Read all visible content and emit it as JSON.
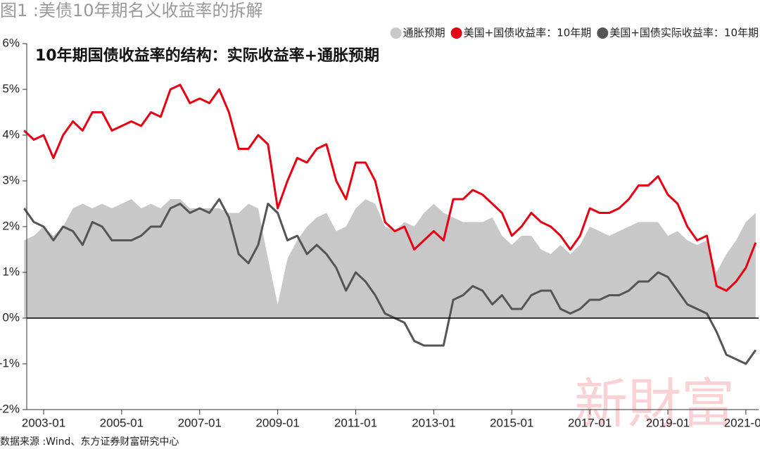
{
  "chart_data": {
    "type": "line",
    "title": "图1 :美债10年期名义收益率的拆解",
    "subtitle": "10年期国债收益率的结构：实际收益率+通胀预期",
    "source": "数据来源 :Wind、东方证券财富研究中心",
    "watermark": "新財富",
    "x": [
      "2002-07",
      "2002-10",
      "2003-01",
      "2003-04",
      "2003-07",
      "2003-10",
      "2004-01",
      "2004-04",
      "2004-07",
      "2004-10",
      "2005-01",
      "2005-04",
      "2005-07",
      "2005-10",
      "2006-01",
      "2006-04",
      "2006-07",
      "2006-10",
      "2007-01",
      "2007-04",
      "2007-07",
      "2007-10",
      "2008-01",
      "2008-04",
      "2008-07",
      "2008-10",
      "2009-01",
      "2009-04",
      "2009-07",
      "2009-10",
      "2010-01",
      "2010-04",
      "2010-07",
      "2010-10",
      "2011-01",
      "2011-04",
      "2011-07",
      "2011-10",
      "2012-01",
      "2012-04",
      "2012-07",
      "2012-10",
      "2013-01",
      "2013-04",
      "2013-07",
      "2013-10",
      "2014-01",
      "2014-04",
      "2014-07",
      "2014-10",
      "2015-01",
      "2015-04",
      "2015-07",
      "2015-10",
      "2016-01",
      "2016-04",
      "2016-07",
      "2016-10",
      "2017-01",
      "2017-04",
      "2017-07",
      "2017-10",
      "2018-01",
      "2018-04",
      "2018-07",
      "2018-10",
      "2019-01",
      "2019-04",
      "2019-07",
      "2019-10",
      "2020-01",
      "2020-04",
      "2020-07",
      "2020-10",
      "2021-01",
      "2021-04"
    ],
    "xticks": [
      "2003-01",
      "2005-01",
      "2007-01",
      "2009-01",
      "2011-01",
      "2013-01",
      "2015-01",
      "2017-01",
      "2019-01",
      "2021-01"
    ],
    "ylim": [
      -2,
      6
    ],
    "yticks": [
      {
        "value": -2,
        "label": "-2%"
      },
      {
        "value": -1,
        "label": "-1%"
      },
      {
        "value": 0,
        "label": "0%"
      },
      {
        "value": 1,
        "label": "1%"
      },
      {
        "value": 2,
        "label": "2%"
      },
      {
        "value": 3,
        "label": "3%"
      },
      {
        "value": 4,
        "label": "4%"
      },
      {
        "value": 5,
        "label": "5%"
      },
      {
        "value": 6,
        "label": "6%"
      }
    ],
    "series": [
      {
        "name": "通胀预期",
        "type": "area",
        "color": "#c8c8c8",
        "values": [
          1.7,
          1.8,
          2.0,
          1.8,
          2.0,
          2.4,
          2.5,
          2.4,
          2.5,
          2.4,
          2.5,
          2.6,
          2.4,
          2.5,
          2.4,
          2.6,
          2.6,
          2.4,
          2.4,
          2.4,
          2.4,
          2.3,
          2.3,
          2.5,
          2.4,
          1.3,
          0.3,
          1.3,
          1.7,
          2.0,
          2.2,
          2.3,
          1.9,
          2.0,
          2.4,
          2.6,
          2.5,
          2.0,
          1.9,
          2.1,
          2.0,
          2.3,
          2.5,
          2.3,
          2.2,
          2.1,
          2.1,
          2.1,
          2.2,
          1.8,
          1.6,
          1.8,
          1.8,
          1.5,
          1.4,
          1.6,
          1.4,
          1.6,
          2.0,
          1.9,
          1.8,
          1.9,
          2.0,
          2.1,
          2.1,
          2.1,
          1.8,
          1.9,
          1.7,
          1.6,
          1.7,
          1.0,
          1.4,
          1.7,
          2.1,
          2.3
        ]
      },
      {
        "name": "美国+国债收益率：10年期",
        "type": "line",
        "color": "#e60012",
        "values": [
          4.1,
          3.9,
          4.0,
          3.5,
          4.0,
          4.3,
          4.1,
          4.5,
          4.5,
          4.1,
          4.2,
          4.3,
          4.2,
          4.5,
          4.4,
          5.0,
          5.1,
          4.7,
          4.8,
          4.7,
          5.0,
          4.5,
          3.7,
          3.7,
          4.0,
          3.8,
          2.4,
          3.0,
          3.5,
          3.4,
          3.7,
          3.8,
          3.0,
          2.6,
          3.4,
          3.4,
          3.0,
          2.1,
          1.9,
          2.0,
          1.5,
          1.7,
          1.9,
          1.7,
          2.6,
          2.6,
          2.8,
          2.7,
          2.5,
          2.3,
          1.8,
          2.0,
          2.3,
          2.1,
          2.0,
          1.8,
          1.5,
          1.8,
          2.4,
          2.3,
          2.3,
          2.4,
          2.6,
          2.9,
          2.9,
          3.1,
          2.7,
          2.5,
          2.0,
          1.7,
          1.8,
          0.7,
          0.6,
          0.8,
          1.1,
          1.65
        ]
      },
      {
        "name": "美国+国债实际收益率：10年期",
        "type": "line",
        "color": "#555555",
        "values": [
          2.4,
          2.1,
          2.0,
          1.7,
          2.0,
          1.9,
          1.6,
          2.1,
          2.0,
          1.7,
          1.7,
          1.7,
          1.8,
          2.0,
          2.0,
          2.4,
          2.5,
          2.3,
          2.4,
          2.3,
          2.6,
          2.2,
          1.4,
          1.2,
          1.6,
          2.5,
          2.3,
          1.7,
          1.8,
          1.4,
          1.6,
          1.4,
          1.1,
          0.6,
          1.0,
          0.8,
          0.5,
          0.1,
          0.0,
          -0.1,
          -0.5,
          -0.6,
          -0.6,
          -0.6,
          0.4,
          0.5,
          0.7,
          0.6,
          0.3,
          0.5,
          0.2,
          0.2,
          0.5,
          0.6,
          0.6,
          0.2,
          0.1,
          0.2,
          0.4,
          0.4,
          0.5,
          0.5,
          0.6,
          0.8,
          0.8,
          1.0,
          0.9,
          0.6,
          0.3,
          0.2,
          0.1,
          -0.3,
          -0.8,
          -0.9,
          -1.0,
          -0.7
        ]
      }
    ]
  }
}
